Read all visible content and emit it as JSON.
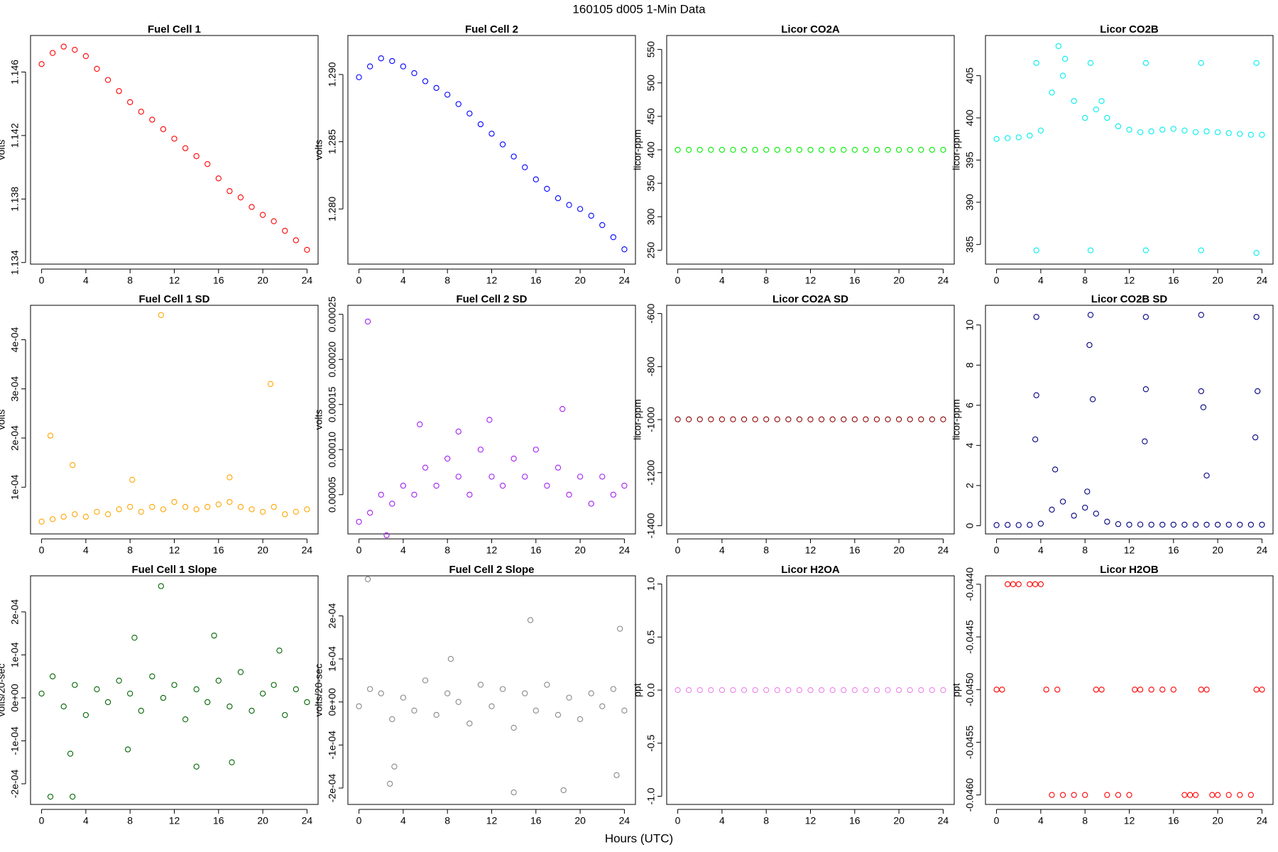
{
  "title": "160105   d005   1-Min Data",
  "xlabel": "Hours (UTC)",
  "chart_data": [
    {
      "type": "scatter",
      "title": "Fuel Cell 1",
      "ylabel": "volts",
      "color": "#ff0000",
      "x": [
        0,
        1,
        2,
        3,
        4,
        5,
        6,
        7,
        8,
        9,
        10,
        11,
        12,
        13,
        14,
        15,
        16,
        17,
        18,
        19,
        20,
        21,
        22,
        23,
        24
      ],
      "values": [
        1.1465,
        1.1472,
        1.1476,
        1.1474,
        1.147,
        1.1462,
        1.1455,
        1.1448,
        1.1441,
        1.1435,
        1.143,
        1.1424,
        1.1418,
        1.1412,
        1.1407,
        1.1402,
        1.1393,
        1.1385,
        1.1381,
        1.1375,
        1.137,
        1.1366,
        1.136,
        1.1354,
        1.1348
      ],
      "xlim": [
        -1,
        25
      ],
      "xticks": [
        0,
        4,
        8,
        12,
        16,
        20,
        24
      ],
      "ylim": [
        1.1339,
        1.1483
      ],
      "yticks": [
        1.134,
        1.138,
        1.142,
        1.146
      ]
    },
    {
      "type": "scatter",
      "title": "Fuel Cell 2",
      "ylabel": "volts",
      "color": "#0000ff",
      "x": [
        0,
        1,
        2,
        3,
        4,
        5,
        6,
        7,
        8,
        9,
        10,
        11,
        12,
        13,
        14,
        15,
        16,
        17,
        18,
        19,
        20,
        21,
        22,
        23,
        24
      ],
      "values": [
        1.2898,
        1.2906,
        1.2912,
        1.291,
        1.2906,
        1.2901,
        1.2895,
        1.289,
        1.2885,
        1.2878,
        1.2871,
        1.2863,
        1.2856,
        1.2848,
        1.2839,
        1.2831,
        1.2822,
        1.2815,
        1.2808,
        1.2803,
        1.28,
        1.2795,
        1.2788,
        1.2779,
        1.277
      ],
      "xlim": [
        -1,
        25
      ],
      "xticks": [
        0,
        4,
        8,
        12,
        16,
        20,
        24
      ],
      "ylim": [
        1.2759,
        1.2929
      ],
      "yticks": [
        {
          "value": 1.28,
          "label": "1.280"
        },
        1.285,
        {
          "value": 1.29,
          "label": "1.290"
        }
      ]
    },
    {
      "type": "scatter",
      "title": "Licor CO2A",
      "ylabel": "licor-ppm",
      "color": "#00ee00",
      "x": [
        0,
        1,
        2,
        3,
        4,
        5,
        6,
        7,
        8,
        9,
        10,
        11,
        12,
        13,
        14,
        15,
        16,
        17,
        18,
        19,
        20,
        21,
        22,
        23,
        24
      ],
      "values": [
        400,
        400,
        400,
        400,
        400,
        400,
        400,
        400,
        400,
        400,
        400,
        400,
        400,
        400,
        400,
        400,
        400,
        400,
        400,
        400,
        400,
        400,
        400,
        400,
        400
      ],
      "xlim": [
        -1,
        25
      ],
      "xticks": [
        0,
        4,
        8,
        12,
        16,
        20,
        24
      ],
      "ylim": [
        229.2,
        570.8
      ],
      "yticks": [
        250,
        300,
        350,
        400,
        450,
        500,
        550
      ]
    },
    {
      "type": "scatter",
      "title": "Licor CO2B",
      "ylabel": "licor-ppm",
      "color": "#00eeee",
      "x": [
        0,
        1,
        2,
        3,
        4,
        5,
        6,
        7,
        8,
        9,
        10,
        11,
        12,
        13,
        14,
        15,
        16,
        17,
        18,
        19,
        20,
        21,
        22,
        23,
        24,
        3.6,
        3.6,
        8.5,
        8.5,
        13.5,
        13.5,
        18.5,
        18.5,
        23.5,
        23.5,
        5.6,
        6.2,
        9.5
      ],
      "values": [
        397.5,
        397.6,
        397.7,
        397.9,
        398.5,
        403,
        405,
        402,
        400,
        401,
        400,
        399,
        398.6,
        398.3,
        398.4,
        398.6,
        398.7,
        398.5,
        398.3,
        398.4,
        398.3,
        398.2,
        398.1,
        398,
        398,
        406.5,
        384.3,
        406.5,
        384.3,
        406.5,
        384.3,
        406.5,
        384.3,
        406.5,
        384,
        408.5,
        407,
        402
      ],
      "xlim": [
        -1,
        25
      ],
      "xticks": [
        0,
        4,
        8,
        12,
        16,
        20,
        24
      ],
      "ylim": [
        382.67,
        409.76
      ],
      "yticks": [
        385,
        390,
        395,
        400,
        405
      ]
    },
    {
      "type": "scatter",
      "title": "Fuel Cell 1 SD",
      "ylabel": "volts",
      "color": "#ffa500",
      "x": [
        0,
        1,
        2,
        3,
        4,
        5,
        6,
        7,
        8,
        9,
        10,
        11,
        12,
        13,
        14,
        15,
        16,
        17,
        18,
        19,
        20,
        21,
        22,
        23,
        24,
        10.8,
        20.7,
        0.8,
        2.8,
        8.2,
        17
      ],
      "values": [
        3e-05,
        3.5e-05,
        4e-05,
        4.5e-05,
        4e-05,
        5e-05,
        4.5e-05,
        5.5e-05,
        6e-05,
        5e-05,
        6e-05,
        5.5e-05,
        7e-05,
        6e-05,
        5.5e-05,
        6e-05,
        6.5e-05,
        7e-05,
        6e-05,
        5.5e-05,
        5e-05,
        6e-05,
        4.5e-05,
        5e-05,
        5.5e-05,
        0.00045,
        0.00031,
        0.000205,
        0.000145,
        0.000115,
        0.00012
      ],
      "xlim": [
        -1,
        25
      ],
      "xticks": [
        0,
        4,
        8,
        12,
        16,
        20,
        24
      ],
      "ylim": [
        5e-06,
        0.00047
      ],
      "yticks": [
        {
          "value": 0.0001,
          "label": "1e-04"
        },
        {
          "value": 0.0002,
          "label": "2e-04"
        },
        {
          "value": 0.0003,
          "label": "3e-04"
        },
        {
          "value": 0.0004,
          "label": "4e-04"
        }
      ]
    },
    {
      "type": "scatter",
      "title": "Fuel Cell 2 SD",
      "ylabel": "volts",
      "color": "#a020f0",
      "x": [
        0,
        1,
        2,
        3,
        4,
        5,
        6,
        7,
        8,
        9,
        10,
        11,
        12,
        13,
        14,
        15,
        16,
        17,
        18,
        19,
        20,
        21,
        22,
        23,
        24,
        0.8,
        18.4,
        11.8,
        2.5,
        9,
        5.5
      ],
      "values": [
        2e-05,
        3e-05,
        5e-05,
        4e-05,
        6e-05,
        5e-05,
        8e-05,
        6e-05,
        9e-05,
        7e-05,
        5e-05,
        0.0001,
        7e-05,
        6e-05,
        9e-05,
        7e-05,
        0.0001,
        6e-05,
        8e-05,
        5e-05,
        7e-05,
        4e-05,
        7e-05,
        5e-05,
        6e-05,
        0.000242,
        0.000145,
        0.000133,
        5e-06,
        0.00012,
        0.000128
      ],
      "xlim": [
        -1,
        25
      ],
      "xticks": [
        0,
        4,
        8,
        12,
        16,
        20,
        24
      ],
      "ylim": [
        6.5e-06,
        0.00026
      ],
      "yticks": [
        {
          "value": 5e-05,
          "label": "0.00005"
        },
        {
          "value": 0.0001,
          "label": "0.00010"
        },
        {
          "value": 0.00015,
          "label": "0.00015"
        },
        {
          "value": 0.0002,
          "label": "0.00020"
        },
        {
          "value": 0.00025,
          "label": "0.00025"
        }
      ]
    },
    {
      "type": "scatter",
      "title": "Licor CO2A SD",
      "ylabel": "licor-ppm",
      "color": "#8b0000",
      "x": [
        0,
        1,
        2,
        3,
        4,
        5,
        6,
        7,
        8,
        9,
        10,
        11,
        12,
        13,
        14,
        15,
        16,
        17,
        18,
        19,
        20,
        21,
        22,
        23,
        24
      ],
      "values": [
        -999,
        -999,
        -999,
        -999,
        -999,
        -999,
        -999,
        -999,
        -999,
        -999,
        -999,
        -999,
        -999,
        -999,
        -999,
        -999,
        -999,
        -999,
        -999,
        -999,
        -999,
        -999,
        -999,
        -999,
        -999
      ],
      "xlim": [
        -1,
        25
      ],
      "xticks": [
        0,
        4,
        8,
        12,
        16,
        20,
        24
      ],
      "ylim": [
        -1431,
        -569
      ],
      "yticks": [
        -1400,
        -1200,
        -1000,
        -800,
        -600
      ]
    },
    {
      "type": "scatter",
      "title": "Licor CO2B SD",
      "ylabel": "licor-ppm",
      "color": "#000080",
      "x": [
        0,
        1,
        2,
        3,
        4,
        5,
        6,
        7,
        8,
        9,
        10,
        11,
        12,
        13,
        14,
        15,
        16,
        17,
        18,
        19,
        20,
        21,
        22,
        23,
        24,
        3.6,
        8.5,
        13.5,
        18.5,
        23.5,
        3.6,
        8.4,
        13.5,
        18.5,
        23.6,
        3.5,
        8.7,
        13.4,
        18.7,
        23.4,
        19,
        5.3,
        8.2
      ],
      "values": [
        0.03,
        0.04,
        0.03,
        0.04,
        0.1,
        0.8,
        1.2,
        0.5,
        0.9,
        0.6,
        0.2,
        0.08,
        0.05,
        0.06,
        0.05,
        0.05,
        0.05,
        0.05,
        0.05,
        0.05,
        0.05,
        0.05,
        0.05,
        0.05,
        0.05,
        10.4,
        10.5,
        10.4,
        10.5,
        10.4,
        6.5,
        9,
        6.8,
        6.7,
        6.7,
        4.3,
        6.3,
        4.2,
        5.9,
        4.4,
        2.5,
        2.8,
        1.7
      ],
      "xlim": [
        -1,
        25
      ],
      "xticks": [
        0,
        4,
        8,
        12,
        16,
        20,
        24
      ],
      "ylim": [
        -0.41,
        10.98
      ],
      "yticks": [
        0,
        2,
        4,
        6,
        8,
        10
      ]
    },
    {
      "type": "scatter",
      "title": "Fuel Cell 1 Slope",
      "ylabel": "volts/20-sec",
      "color": "#006400",
      "x": [
        0,
        1,
        2,
        3,
        4,
        5,
        6,
        7,
        8,
        9,
        10,
        11,
        12,
        13,
        14,
        15,
        16,
        17,
        18,
        19,
        20,
        21,
        22,
        23,
        24,
        10.8,
        0.8,
        2.8,
        8.4,
        15.6,
        14,
        17.2,
        7.8,
        2.6,
        21.5
      ],
      "values": [
        1e-05,
        5e-05,
        -2e-05,
        3e-05,
        -4e-05,
        2e-05,
        -1e-05,
        4e-05,
        1e-05,
        -3e-05,
        5e-05,
        0,
        3e-05,
        -5e-05,
        2e-05,
        -1e-05,
        4e-05,
        -2e-05,
        6e-05,
        -3e-05,
        1e-05,
        3e-05,
        -4e-05,
        2e-05,
        -1e-05,
        0.00026,
        -0.00023,
        -0.00023,
        0.00014,
        0.000145,
        -0.00016,
        -0.00015,
        -0.00012,
        -0.00013,
        0.00011
      ],
      "xlim": [
        -1,
        25
      ],
      "xticks": [
        0,
        4,
        8,
        12,
        16,
        20,
        24
      ],
      "ylim": [
        -0.000248,
        0.000284
      ],
      "yticks": [
        {
          "value": -0.0002,
          "label": "-2e-04"
        },
        {
          "value": -0.0001,
          "label": "-1e-04"
        },
        {
          "value": 0,
          "label": "0e+00"
        },
        {
          "value": 0.0001,
          "label": "1e-04"
        },
        {
          "value": 0.0002,
          "label": "2e-04"
        }
      ]
    },
    {
      "type": "scatter",
      "title": "Fuel Cell 2 Slope",
      "ylabel": "volts/20-sec",
      "color": "#888888",
      "x": [
        0,
        1,
        2,
        3,
        4,
        5,
        6,
        7,
        8,
        9,
        10,
        11,
        12,
        13,
        14,
        15,
        16,
        17,
        18,
        19,
        20,
        21,
        22,
        23,
        24,
        0.8,
        15.5,
        23.6,
        14,
        18.5,
        2.8,
        3.2,
        8.3,
        23.3
      ],
      "values": [
        -1e-05,
        3e-05,
        2e-05,
        -4e-05,
        1e-05,
        -2e-05,
        5e-05,
        -3e-05,
        2e-05,
        0,
        -5e-05,
        4e-05,
        -1e-05,
        3e-05,
        -6e-05,
        2e-05,
        -2e-05,
        4e-05,
        -3e-05,
        1e-05,
        -4e-05,
        2e-05,
        -1e-05,
        3e-05,
        -2e-05,
        0.000285,
        0.00019,
        0.00017,
        -0.00021,
        -0.000205,
        -0.00019,
        -0.00015,
        0.0001,
        -0.00017
      ],
      "xlim": [
        -1,
        25
      ],
      "xticks": [
        0,
        4,
        8,
        12,
        16,
        20,
        24
      ],
      "ylim": [
        -0.000238,
        0.000293
      ],
      "yticks": [
        {
          "value": -0.0002,
          "label": "-2e-04"
        },
        {
          "value": -0.0001,
          "label": "-1e-04"
        },
        {
          "value": 0,
          "label": "0e+00"
        },
        {
          "value": 0.0001,
          "label": "1e-04"
        },
        {
          "value": 0.0002,
          "label": "2e-04"
        }
      ]
    },
    {
      "type": "scatter",
      "title": "Licor H2OA",
      "ylabel": "ppt",
      "color": "#ee82ee",
      "x": [
        0,
        1,
        2,
        3,
        4,
        5,
        6,
        7,
        8,
        9,
        10,
        11,
        12,
        13,
        14,
        15,
        16,
        17,
        18,
        19,
        20,
        21,
        22,
        23,
        24
      ],
      "values": [
        0,
        0,
        0,
        0,
        0,
        0,
        0,
        0,
        0,
        0,
        0,
        0,
        0,
        0,
        0,
        0,
        0,
        0,
        0,
        0,
        0,
        0,
        0,
        0,
        0
      ],
      "xlim": [
        -1,
        25
      ],
      "xticks": [
        0,
        4,
        8,
        12,
        16,
        20,
        24
      ],
      "ylim": [
        -1.077,
        1.077
      ],
      "yticks": [
        {
          "value": -1,
          "label": "-1.0"
        },
        -0.5,
        {
          "value": 0,
          "label": "0.0"
        },
        0.5,
        {
          "value": 1,
          "label": "1.0"
        }
      ]
    },
    {
      "type": "scatter",
      "title": "Licor H2OB",
      "ylabel": "ppt",
      "color": "#ff0000",
      "x": [
        0,
        1,
        2,
        3,
        4,
        5,
        6,
        7,
        8,
        9,
        10,
        11,
        12,
        13,
        14,
        15,
        16,
        17,
        18,
        19,
        20,
        21,
        22,
        23,
        24,
        0.5,
        4.5,
        5.5,
        9.5,
        12.5,
        17.5,
        18.5,
        19.5,
        23.5,
        1.5,
        3.5
      ],
      "values": [
        -0.045,
        -0.044,
        -0.044,
        -0.044,
        -0.044,
        -0.046,
        -0.046,
        -0.046,
        -0.046,
        -0.045,
        -0.046,
        -0.046,
        -0.046,
        -0.045,
        -0.045,
        -0.045,
        -0.045,
        -0.046,
        -0.046,
        -0.045,
        -0.046,
        -0.046,
        -0.046,
        -0.046,
        -0.045,
        -0.045,
        -0.045,
        -0.045,
        -0.045,
        -0.045,
        -0.046,
        -0.045,
        -0.046,
        -0.045,
        -0.044,
        -0.044
      ],
      "xlim": [
        -1,
        25
      ],
      "xticks": [
        0,
        4,
        8,
        12,
        16,
        20,
        24
      ],
      "ylim": [
        -0.04609,
        -0.04392
      ],
      "yticks": [
        {
          "value": -0.046,
          "label": "-0.0460"
        },
        {
          "value": -0.0455,
          "label": "-0.0455"
        },
        {
          "value": -0.045,
          "label": "-0.0450"
        },
        {
          "value": -0.0445,
          "label": "-0.0445"
        },
        {
          "value": -0.044,
          "label": "-0.0440"
        }
      ]
    }
  ]
}
